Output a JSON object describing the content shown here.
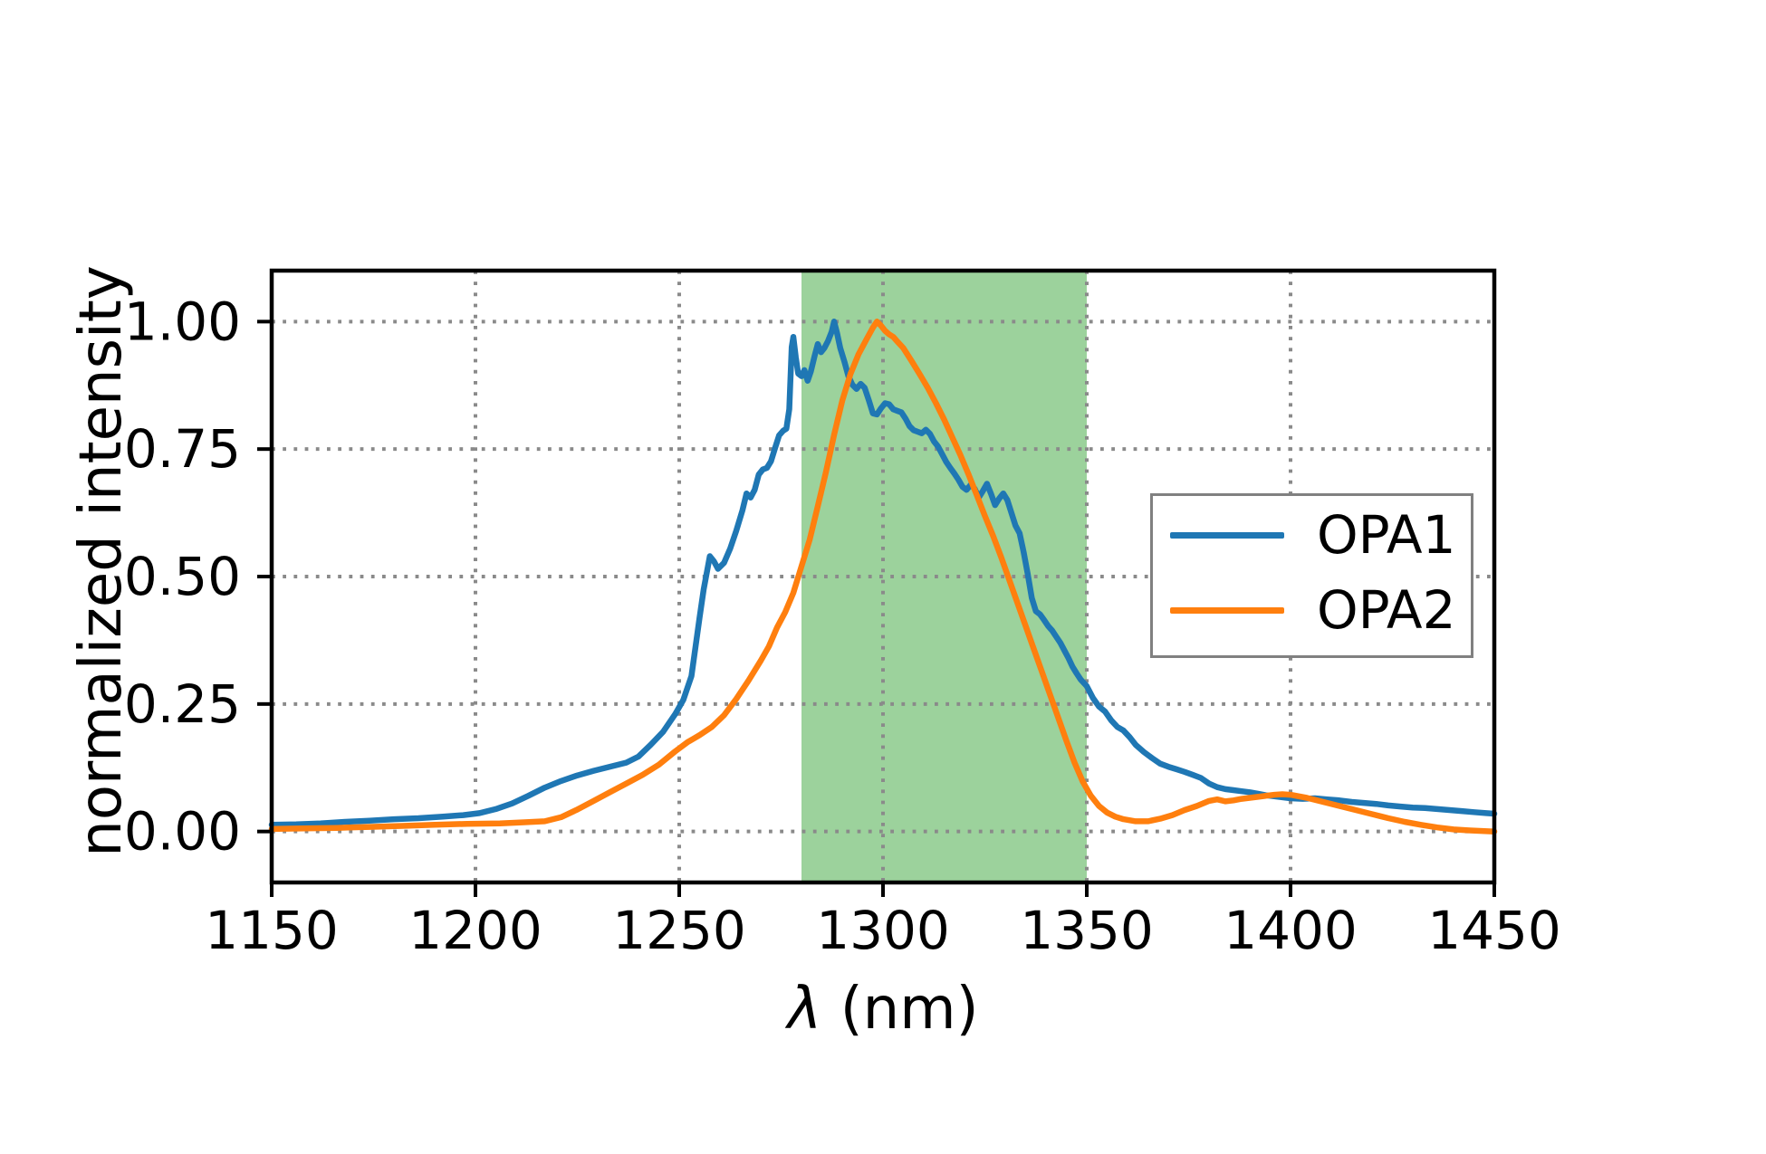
{
  "chart_data": {
    "type": "line",
    "title": "",
    "xlabel": "λ (nm)",
    "xlabel_symbol": "λ",
    "xlabel_rest": " (nm)",
    "ylabel": "normalized intensity",
    "xlim": [
      1150,
      1450
    ],
    "ylim": [
      -0.1,
      1.1
    ],
    "x_ticks": [
      1150,
      1200,
      1250,
      1300,
      1350,
      1400,
      1450
    ],
    "x_tick_labels": [
      "1150",
      "1200",
      "1250",
      "1300",
      "1350",
      "1400",
      "1450"
    ],
    "y_ticks": [
      0.0,
      0.25,
      0.5,
      0.75,
      1.0
    ],
    "y_tick_labels": [
      "0.00",
      "0.25",
      "0.50",
      "0.75",
      "1.00"
    ],
    "grid": "dotted",
    "grid_color": "#8a8a8a",
    "spine_color": "#000000",
    "shaded_region": {
      "xmin": 1280,
      "xmax": 1350,
      "color": "#2ca02c",
      "alpha": 0.47,
      "fill": "rgba(44,160,44,0.47)"
    },
    "legend": {
      "position": "center right",
      "border_color": "#808080",
      "entries": [
        "OPA1",
        "OPA2"
      ]
    },
    "series": [
      {
        "name": "OPA1",
        "color": "#1f77b4",
        "points": [
          [
            1150,
            0.013
          ],
          [
            1156,
            0.014
          ],
          [
            1162,
            0.016
          ],
          [
            1168,
            0.019
          ],
          [
            1174,
            0.021
          ],
          [
            1180,
            0.024
          ],
          [
            1186,
            0.026
          ],
          [
            1192,
            0.029
          ],
          [
            1197,
            0.032
          ],
          [
            1201,
            0.036
          ],
          [
            1205,
            0.044
          ],
          [
            1209,
            0.055
          ],
          [
            1213,
            0.07
          ],
          [
            1217,
            0.086
          ],
          [
            1221,
            0.099
          ],
          [
            1225,
            0.11
          ],
          [
            1229,
            0.119
          ],
          [
            1233,
            0.127
          ],
          [
            1237,
            0.135
          ],
          [
            1240,
            0.147
          ],
          [
            1243,
            0.17
          ],
          [
            1246,
            0.195
          ],
          [
            1249,
            0.23
          ],
          [
            1251,
            0.258
          ],
          [
            1253,
            0.305
          ],
          [
            1255,
            0.42
          ],
          [
            1256,
            0.475
          ],
          [
            1257.5,
            0.54
          ],
          [
            1258.5,
            0.53
          ],
          [
            1259.5,
            0.515
          ],
          [
            1261,
            0.527
          ],
          [
            1262.5,
            0.555
          ],
          [
            1264,
            0.59
          ],
          [
            1265.5,
            0.63
          ],
          [
            1266.5,
            0.663
          ],
          [
            1267.5,
            0.655
          ],
          [
            1268.5,
            0.67
          ],
          [
            1269.5,
            0.7
          ],
          [
            1270.5,
            0.71
          ],
          [
            1271.5,
            0.713
          ],
          [
            1272.5,
            0.726
          ],
          [
            1273.5,
            0.752
          ],
          [
            1274.5,
            0.777
          ],
          [
            1275.5,
            0.786
          ],
          [
            1276.3,
            0.79
          ],
          [
            1277,
            0.828
          ],
          [
            1277.6,
            0.95
          ],
          [
            1278,
            0.97
          ],
          [
            1278.6,
            0.93
          ],
          [
            1279.2,
            0.898
          ],
          [
            1280,
            0.893
          ],
          [
            1280.7,
            0.905
          ],
          [
            1281.5,
            0.884
          ],
          [
            1282.3,
            0.902
          ],
          [
            1283.2,
            0.932
          ],
          [
            1284,
            0.956
          ],
          [
            1284.8,
            0.94
          ],
          [
            1285.6,
            0.948
          ],
          [
            1286.5,
            0.962
          ],
          [
            1287.4,
            0.98
          ],
          [
            1288,
            1.0
          ],
          [
            1288.7,
            0.978
          ],
          [
            1289.5,
            0.948
          ],
          [
            1290.5,
            0.922
          ],
          [
            1291.5,
            0.893
          ],
          [
            1292.5,
            0.876
          ],
          [
            1293.5,
            0.868
          ],
          [
            1294.5,
            0.878
          ],
          [
            1295.5,
            0.87
          ],
          [
            1296.5,
            0.846
          ],
          [
            1297.5,
            0.82
          ],
          [
            1298.5,
            0.818
          ],
          [
            1299.5,
            0.83
          ],
          [
            1300.5,
            0.84
          ],
          [
            1301.5,
            0.838
          ],
          [
            1302.5,
            0.828
          ],
          [
            1303.5,
            0.825
          ],
          [
            1304.5,
            0.822
          ],
          [
            1305.5,
            0.81
          ],
          [
            1306.5,
            0.795
          ],
          [
            1307.5,
            0.787
          ],
          [
            1308.5,
            0.784
          ],
          [
            1309.5,
            0.781
          ],
          [
            1310.5,
            0.788
          ],
          [
            1311.5,
            0.78
          ],
          [
            1312.5,
            0.765
          ],
          [
            1313.5,
            0.755
          ],
          [
            1314.5,
            0.74
          ],
          [
            1315.5,
            0.725
          ],
          [
            1316.5,
            0.713
          ],
          [
            1317.5,
            0.702
          ],
          [
            1318.5,
            0.69
          ],
          [
            1319.5,
            0.676
          ],
          [
            1320.5,
            0.67
          ],
          [
            1321.5,
            0.68
          ],
          [
            1322.5,
            0.672
          ],
          [
            1323.5,
            0.655
          ],
          [
            1324.5,
            0.668
          ],
          [
            1325.5,
            0.682
          ],
          [
            1326.5,
            0.662
          ],
          [
            1327.5,
            0.64
          ],
          [
            1328.5,
            0.653
          ],
          [
            1329.5,
            0.663
          ],
          [
            1330.5,
            0.65
          ],
          [
            1331.5,
            0.625
          ],
          [
            1332.5,
            0.6
          ],
          [
            1333.5,
            0.585
          ],
          [
            1334.5,
            0.548
          ],
          [
            1335.5,
            0.505
          ],
          [
            1336.5,
            0.458
          ],
          [
            1337.5,
            0.432
          ],
          [
            1338.5,
            0.426
          ],
          [
            1339.5,
            0.415
          ],
          [
            1340.5,
            0.403
          ],
          [
            1341.5,
            0.394
          ],
          [
            1342.5,
            0.382
          ],
          [
            1343.5,
            0.37
          ],
          [
            1344.5,
            0.355
          ],
          [
            1345.5,
            0.34
          ],
          [
            1346.5,
            0.323
          ],
          [
            1347.5,
            0.31
          ],
          [
            1348.5,
            0.298
          ],
          [
            1350,
            0.285
          ],
          [
            1351.5,
            0.262
          ],
          [
            1353,
            0.245
          ],
          [
            1354.5,
            0.235
          ],
          [
            1356,
            0.218
          ],
          [
            1357.5,
            0.205
          ],
          [
            1359,
            0.198
          ],
          [
            1360.5,
            0.185
          ],
          [
            1362,
            0.17
          ],
          [
            1364,
            0.156
          ],
          [
            1366,
            0.144
          ],
          [
            1368,
            0.133
          ],
          [
            1370,
            0.127
          ],
          [
            1372,
            0.122
          ],
          [
            1374,
            0.117
          ],
          [
            1376,
            0.111
          ],
          [
            1378,
            0.105
          ],
          [
            1380,
            0.094
          ],
          [
            1382,
            0.087
          ],
          [
            1384,
            0.083
          ],
          [
            1386,
            0.081
          ],
          [
            1388,
            0.079
          ],
          [
            1390,
            0.077
          ],
          [
            1392,
            0.074
          ],
          [
            1394,
            0.071
          ],
          [
            1396,
            0.069
          ],
          [
            1398,
            0.067
          ],
          [
            1400,
            0.065
          ],
          [
            1403,
            0.064
          ],
          [
            1406,
            0.065
          ],
          [
            1409,
            0.063
          ],
          [
            1412,
            0.061
          ],
          [
            1415,
            0.058
          ],
          [
            1418,
            0.056
          ],
          [
            1421,
            0.054
          ],
          [
            1424,
            0.051
          ],
          [
            1427,
            0.049
          ],
          [
            1430,
            0.047
          ],
          [
            1433,
            0.046
          ],
          [
            1436,
            0.044
          ],
          [
            1439,
            0.042
          ],
          [
            1442,
            0.04
          ],
          [
            1445,
            0.038
          ],
          [
            1448,
            0.036
          ],
          [
            1450,
            0.035
          ]
        ]
      },
      {
        "name": "OPA2",
        "color": "#ff7f0e",
        "points": [
          [
            1150,
            0.005
          ],
          [
            1158,
            0.006
          ],
          [
            1166,
            0.007
          ],
          [
            1174,
            0.009
          ],
          [
            1182,
            0.011
          ],
          [
            1190,
            0.013
          ],
          [
            1198,
            0.015
          ],
          [
            1206,
            0.016
          ],
          [
            1212,
            0.018
          ],
          [
            1217,
            0.02
          ],
          [
            1221,
            0.028
          ],
          [
            1225,
            0.043
          ],
          [
            1229,
            0.06
          ],
          [
            1233,
            0.077
          ],
          [
            1237,
            0.094
          ],
          [
            1241,
            0.111
          ],
          [
            1245,
            0.131
          ],
          [
            1249,
            0.157
          ],
          [
            1252,
            0.175
          ],
          [
            1255,
            0.189
          ],
          [
            1258,
            0.205
          ],
          [
            1261,
            0.228
          ],
          [
            1264,
            0.26
          ],
          [
            1267,
            0.296
          ],
          [
            1270,
            0.335
          ],
          [
            1272,
            0.363
          ],
          [
            1274,
            0.4
          ],
          [
            1276,
            0.43
          ],
          [
            1278,
            0.468
          ],
          [
            1280,
            0.52
          ],
          [
            1282,
            0.572
          ],
          [
            1284,
            0.638
          ],
          [
            1286,
            0.705
          ],
          [
            1288,
            0.778
          ],
          [
            1290,
            0.845
          ],
          [
            1292,
            0.897
          ],
          [
            1294,
            0.936
          ],
          [
            1296,
            0.966
          ],
          [
            1297.5,
            0.988
          ],
          [
            1298.5,
            1.0
          ],
          [
            1299.5,
            0.992
          ],
          [
            1300.5,
            0.982
          ],
          [
            1301.5,
            0.975
          ],
          [
            1302.5,
            0.97
          ],
          [
            1303.5,
            0.961
          ],
          [
            1305,
            0.948
          ],
          [
            1307,
            0.923
          ],
          [
            1309,
            0.897
          ],
          [
            1311,
            0.87
          ],
          [
            1313,
            0.84
          ],
          [
            1315,
            0.808
          ],
          [
            1317,
            0.773
          ],
          [
            1319,
            0.738
          ],
          [
            1321,
            0.7
          ],
          [
            1323,
            0.66
          ],
          [
            1325,
            0.619
          ],
          [
            1327,
            0.58
          ],
          [
            1329,
            0.538
          ],
          [
            1331,
            0.493
          ],
          [
            1333,
            0.448
          ],
          [
            1335,
            0.403
          ],
          [
            1337,
            0.358
          ],
          [
            1339,
            0.313
          ],
          [
            1341,
            0.268
          ],
          [
            1343,
            0.223
          ],
          [
            1345,
            0.178
          ],
          [
            1347,
            0.135
          ],
          [
            1349,
            0.098
          ],
          [
            1351,
            0.07
          ],
          [
            1353,
            0.05
          ],
          [
            1355,
            0.037
          ],
          [
            1357,
            0.029
          ],
          [
            1359,
            0.024
          ],
          [
            1362,
            0.02
          ],
          [
            1365,
            0.02
          ],
          [
            1368,
            0.025
          ],
          [
            1371,
            0.032
          ],
          [
            1374,
            0.042
          ],
          [
            1377,
            0.05
          ],
          [
            1380,
            0.06
          ],
          [
            1382,
            0.063
          ],
          [
            1384,
            0.059
          ],
          [
            1386,
            0.061
          ],
          [
            1388,
            0.064
          ],
          [
            1390,
            0.066
          ],
          [
            1392,
            0.068
          ],
          [
            1394,
            0.07
          ],
          [
            1396,
            0.072
          ],
          [
            1398,
            0.073
          ],
          [
            1400,
            0.072
          ],
          [
            1404,
            0.066
          ],
          [
            1408,
            0.058
          ],
          [
            1412,
            0.05
          ],
          [
            1416,
            0.042
          ],
          [
            1420,
            0.034
          ],
          [
            1424,
            0.026
          ],
          [
            1428,
            0.019
          ],
          [
            1432,
            0.013
          ],
          [
            1436,
            0.008
          ],
          [
            1440,
            0.004
          ],
          [
            1444,
            0.002
          ],
          [
            1447,
            0.001
          ],
          [
            1450,
            0.0
          ]
        ]
      }
    ]
  }
}
